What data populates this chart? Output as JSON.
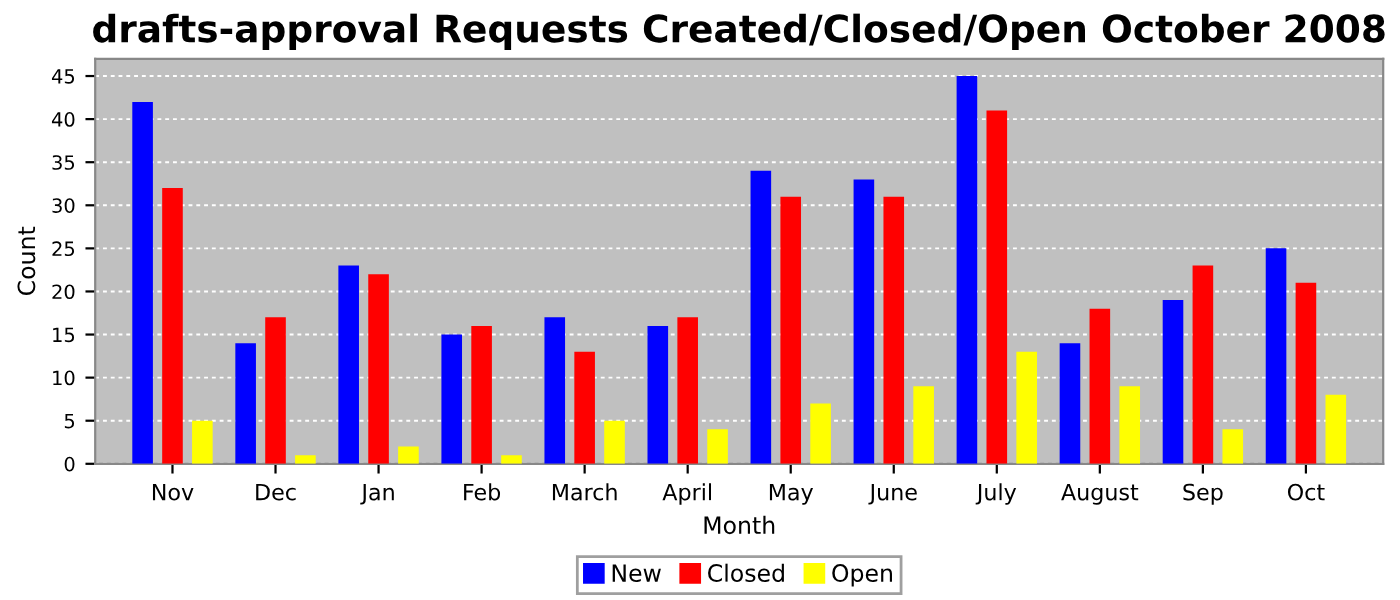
{
  "chart_data": {
    "type": "bar",
    "title": "drafts-approval Requests Created/Closed/Open October 2008",
    "xlabel": "Month",
    "ylabel": "Count",
    "categories": [
      "Nov",
      "Dec",
      "Jan",
      "Feb",
      "March",
      "April",
      "May",
      "June",
      "July",
      "August",
      "Sep",
      "Oct"
    ],
    "series": [
      {
        "name": "New",
        "color": "#0000ff",
        "values": [
          42,
          14,
          23,
          15,
          17,
          16,
          34,
          33,
          45,
          14,
          19,
          25
        ]
      },
      {
        "name": "Closed",
        "color": "#ff0000",
        "values": [
          32,
          17,
          22,
          16,
          13,
          17,
          31,
          31,
          41,
          18,
          23,
          21
        ]
      },
      {
        "name": "Open",
        "color": "#ffff00",
        "values": [
          5,
          1,
          2,
          1,
          5,
          4,
          7,
          9,
          13,
          9,
          4,
          8
        ]
      }
    ],
    "ylim": [
      0,
      47
    ],
    "yticks": [
      0,
      5,
      10,
      15,
      20,
      25,
      30,
      35,
      40,
      45
    ],
    "grid": "y",
    "legend": "bottom"
  }
}
